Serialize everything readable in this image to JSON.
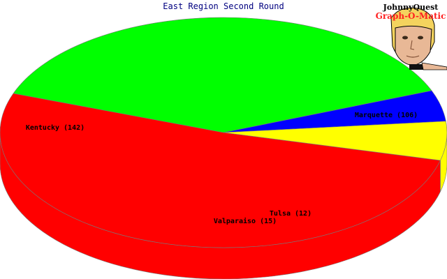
{
  "chart_data": {
    "type": "pie",
    "title": "East Region Second Round",
    "categories": [
      "Kentucky",
      "Marquette",
      "Tulsa",
      "Valparaiso"
    ],
    "values": [
      142,
      106,
      12,
      15
    ],
    "labels": [
      "Kentucky (142)",
      "Marquette (106)",
      "Tulsa (12)",
      "Valparaiso (15)"
    ],
    "colors": [
      "#ff0000",
      "#00ff00",
      "#0000ff",
      "#ffff00"
    ],
    "style": "3d"
  },
  "logo": {
    "line1": "JohnnyQuest",
    "line2": "Graph-O-Matic"
  }
}
